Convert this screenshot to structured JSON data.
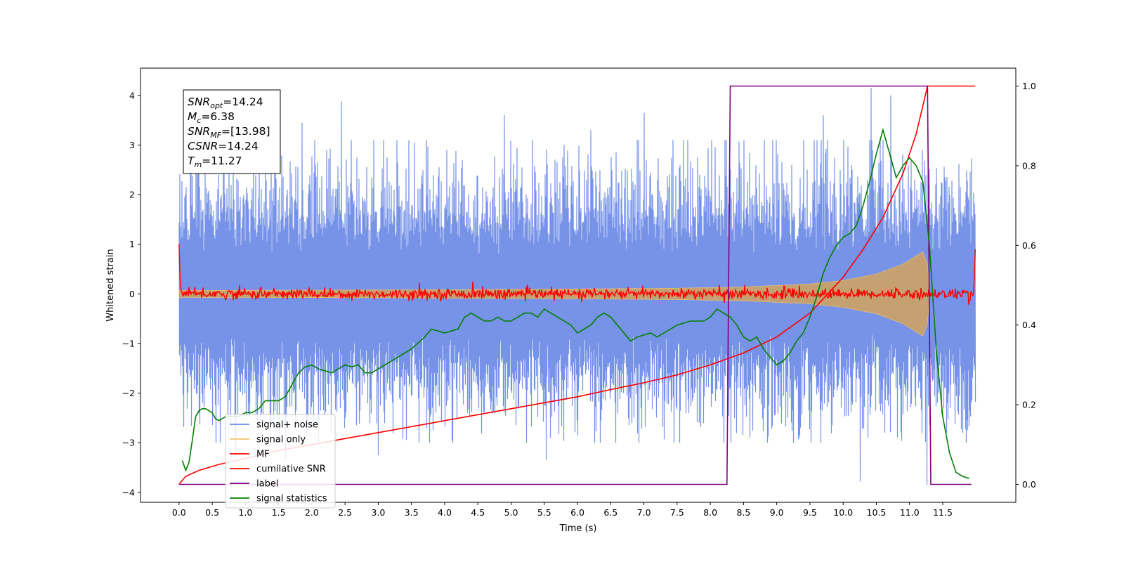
{
  "chart_data": {
    "type": "line",
    "title": "",
    "xlabel": "Time (s)",
    "ylabel": "Whitened strain",
    "y2label": "",
    "xlim": [
      -0.58,
      12.6
    ],
    "ylim": [
      -4.2,
      4.55
    ],
    "y2lim": [
      -0.045,
      1.045
    ],
    "xticks": [
      0.0,
      0.5,
      1.0,
      1.5,
      2.0,
      2.5,
      3.0,
      3.5,
      4.0,
      4.5,
      5.0,
      5.5,
      6.0,
      6.5,
      7.0,
      7.5,
      8.0,
      8.5,
      9.0,
      9.5,
      10.0,
      10.5,
      11.0,
      11.5
    ],
    "xtick_labels": [
      "0.0",
      "0.5",
      "1.0",
      "1.5",
      "2.0",
      "2.5",
      "3.0",
      "3.5",
      "4.0",
      "4.5",
      "5.0",
      "5.5",
      "6.0",
      "6.5",
      "7.0",
      "7.5",
      "8.0",
      "8.5",
      "9.0",
      "9.5",
      "10.0",
      "10.5",
      "11.0",
      "11.5"
    ],
    "yticks": [
      4,
      3,
      2,
      1,
      0,
      -1,
      -2,
      -3,
      -4
    ],
    "ytick_labels": [
      "4",
      "3",
      "2",
      "1",
      "0",
      "−1",
      "−2",
      "−3",
      "−4"
    ],
    "y2ticks": [
      1.0,
      0.8,
      0.6,
      0.4,
      0.2,
      0.0
    ],
    "y2tick_labels": [
      "1.0",
      "0.8",
      "0.6",
      "0.4",
      "0.2",
      "0.0"
    ],
    "grid": false,
    "legend_position": "lower-left",
    "annotation": {
      "lines": [
        {
          "main": "SNR",
          "sub": "opt",
          "rest": "=14.24"
        },
        {
          "main": "M",
          "sub": "c",
          "rest": "=6.38"
        },
        {
          "main": "SNR",
          "sub": "MF",
          "rest": "=[13.98]"
        },
        {
          "main": "CSNR",
          "sub": "",
          "rest": "=14.24"
        },
        {
          "main": "T",
          "sub": "m",
          "rest": "=11.27"
        }
      ]
    },
    "series": [
      {
        "name": "signal+ noise",
        "color": "#6b8ae6",
        "axis": "left",
        "kind": "noise",
        "x_range": [
          0.0,
          11.99
        ],
        "std": 0.95,
        "peaks": [
          {
            "x": 2.45,
            "y": 3.88
          },
          {
            "x": 10.42,
            "y": 4.15
          },
          {
            "x": 11.26,
            "y": -3.85
          },
          {
            "x": 10.72,
            "y": 4.0
          },
          {
            "x": 7.0,
            "y": 3.65
          },
          {
            "x": 4.9,
            "y": 3.6
          },
          {
            "x": 1.85,
            "y": 3.45
          },
          {
            "x": 10.25,
            "y": -3.78
          },
          {
            "x": 5.52,
            "y": -3.35
          },
          {
            "x": 0.85,
            "y": -3.3
          },
          {
            "x": 1.6,
            "y": -3.35
          },
          {
            "x": 3.0,
            "y": -3.25
          },
          {
            "x": 9.7,
            "y": 3.6
          },
          {
            "x": 6.2,
            "y": 3.3
          }
        ]
      },
      {
        "name": "signal only",
        "color": "#f5c56a",
        "axis": "left",
        "kind": "chirp",
        "x_start": 0.0,
        "merger_time": 11.27,
        "amplitude_points": [
          [
            0.0,
            0.07
          ],
          [
            2.0,
            0.075
          ],
          [
            4.0,
            0.085
          ],
          [
            6.0,
            0.1
          ],
          [
            7.5,
            0.115
          ],
          [
            8.5,
            0.14
          ],
          [
            9.5,
            0.2
          ],
          [
            10.0,
            0.27
          ],
          [
            10.5,
            0.4
          ],
          [
            10.9,
            0.6
          ],
          [
            11.2,
            0.85
          ],
          [
            11.27,
            0.6
          ],
          [
            11.3,
            0.0
          ]
        ]
      },
      {
        "name": "MF",
        "color": "#ff0000",
        "axis": "left",
        "kind": "mf",
        "x_range": [
          0.0,
          11.99
        ],
        "std": 0.05,
        "start_y": 1.0,
        "end_y": 0.9
      },
      {
        "name": "cumilative SNR",
        "color": "#ff0000",
        "axis": "right",
        "x": [
          0.0,
          0.1,
          0.3,
          0.6,
          1.0,
          1.5,
          2.0,
          2.5,
          3.0,
          3.5,
          4.0,
          4.5,
          5.0,
          5.5,
          6.0,
          6.5,
          7.0,
          7.5,
          8.0,
          8.5,
          9.0,
          9.5,
          10.0,
          10.3,
          10.6,
          10.9,
          11.1,
          11.2,
          11.27,
          11.99
        ],
        "y": [
          0.0,
          0.02,
          0.035,
          0.05,
          0.065,
          0.085,
          0.1,
          0.115,
          0.13,
          0.145,
          0.16,
          0.175,
          0.19,
          0.205,
          0.22,
          0.238,
          0.255,
          0.275,
          0.3,
          0.33,
          0.37,
          0.43,
          0.52,
          0.59,
          0.67,
          0.78,
          0.88,
          0.95,
          1.0,
          1.0
        ]
      },
      {
        "name": "label",
        "color": "#800080",
        "axis": "right",
        "x": [
          0.0,
          8.25,
          8.3,
          11.27,
          11.32,
          11.93
        ],
        "y": [
          0.0,
          0.0,
          1.0,
          1.0,
          0.0,
          0.0
        ]
      },
      {
        "name": "signal statistics",
        "color": "#008000",
        "axis": "right",
        "x": [
          0.05,
          0.1,
          0.15,
          0.2,
          0.25,
          0.3,
          0.35,
          0.4,
          0.45,
          0.5,
          0.55,
          0.6,
          0.7,
          0.8,
          0.9,
          1.0,
          1.1,
          1.2,
          1.3,
          1.4,
          1.5,
          1.6,
          1.7,
          1.8,
          1.9,
          2.0,
          2.1,
          2.2,
          2.3,
          2.4,
          2.5,
          2.6,
          2.7,
          2.8,
          2.9,
          3.0,
          3.1,
          3.2,
          3.3,
          3.4,
          3.5,
          3.6,
          3.7,
          3.8,
          3.9,
          4.0,
          4.1,
          4.2,
          4.3,
          4.4,
          4.5,
          4.6,
          4.7,
          4.8,
          4.9,
          5.0,
          5.1,
          5.2,
          5.3,
          5.4,
          5.5,
          5.6,
          5.7,
          5.8,
          5.9,
          6.0,
          6.1,
          6.2,
          6.3,
          6.4,
          6.5,
          6.6,
          6.7,
          6.8,
          6.9,
          7.0,
          7.1,
          7.2,
          7.3,
          7.4,
          7.5,
          7.6,
          7.7,
          7.8,
          7.9,
          8.0,
          8.1,
          8.2,
          8.3,
          8.4,
          8.5,
          8.6,
          8.7,
          8.8,
          8.9,
          9.0,
          9.1,
          9.2,
          9.3,
          9.4,
          9.5,
          9.6,
          9.7,
          9.8,
          9.9,
          10.0,
          10.1,
          10.2,
          10.3,
          10.4,
          10.5,
          10.6,
          10.7,
          10.8,
          10.9,
          11.0,
          11.1,
          11.2,
          11.3,
          11.4,
          11.5,
          11.6,
          11.7,
          11.8,
          11.9
        ],
        "y": [
          0.06,
          0.035,
          0.055,
          0.11,
          0.17,
          0.185,
          0.19,
          0.19,
          0.185,
          0.18,
          0.165,
          0.16,
          0.17,
          0.17,
          0.17,
          0.18,
          0.18,
          0.19,
          0.21,
          0.21,
          0.21,
          0.22,
          0.25,
          0.28,
          0.295,
          0.3,
          0.29,
          0.285,
          0.28,
          0.29,
          0.3,
          0.295,
          0.3,
          0.28,
          0.28,
          0.29,
          0.3,
          0.31,
          0.32,
          0.33,
          0.34,
          0.355,
          0.37,
          0.39,
          0.385,
          0.38,
          0.385,
          0.39,
          0.42,
          0.43,
          0.42,
          0.41,
          0.41,
          0.42,
          0.41,
          0.41,
          0.42,
          0.43,
          0.43,
          0.42,
          0.44,
          0.43,
          0.42,
          0.41,
          0.4,
          0.38,
          0.39,
          0.4,
          0.42,
          0.43,
          0.42,
          0.4,
          0.38,
          0.36,
          0.37,
          0.375,
          0.38,
          0.37,
          0.38,
          0.39,
          0.4,
          0.405,
          0.41,
          0.41,
          0.41,
          0.42,
          0.44,
          0.43,
          0.42,
          0.4,
          0.37,
          0.36,
          0.37,
          0.34,
          0.32,
          0.3,
          0.31,
          0.33,
          0.36,
          0.38,
          0.42,
          0.47,
          0.53,
          0.57,
          0.6,
          0.62,
          0.63,
          0.65,
          0.7,
          0.76,
          0.83,
          0.89,
          0.83,
          0.77,
          0.8,
          0.82,
          0.8,
          0.76,
          0.6,
          0.34,
          0.17,
          0.08,
          0.03,
          0.02,
          0.015
        ]
      }
    ]
  }
}
